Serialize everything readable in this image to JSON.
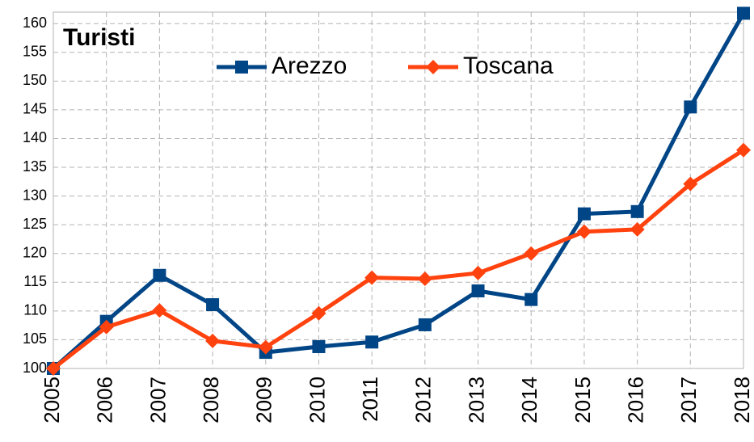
{
  "chart_data": {
    "type": "line",
    "title": "Turisti",
    "categories": [
      "2005",
      "2006",
      "2007",
      "2008",
      "2009",
      "2010",
      "2011",
      "2012",
      "2013",
      "2014",
      "2015",
      "2016",
      "2017",
      "2018"
    ],
    "series": [
      {
        "name": "Arezzo",
        "color": "#004586",
        "marker": "square",
        "values": [
          100,
          108.2,
          116.2,
          111.1,
          102.8,
          103.8,
          104.6,
          107.6,
          113.5,
          112.0,
          126.9,
          127.3,
          145.5,
          161.8
        ]
      },
      {
        "name": "Toscana",
        "color": "#ff420e",
        "marker": "diamond",
        "values": [
          100,
          107.2,
          110.1,
          104.8,
          103.7,
          109.6,
          115.8,
          115.6,
          116.6,
          120.0,
          123.8,
          124.2,
          132.1,
          138.0
        ]
      }
    ],
    "ylim": [
      100,
      162
    ],
    "yticks": [
      100,
      105,
      110,
      115,
      120,
      125,
      130,
      135,
      140,
      145,
      150,
      155,
      160
    ],
    "grid": true,
    "legend": "top"
  }
}
